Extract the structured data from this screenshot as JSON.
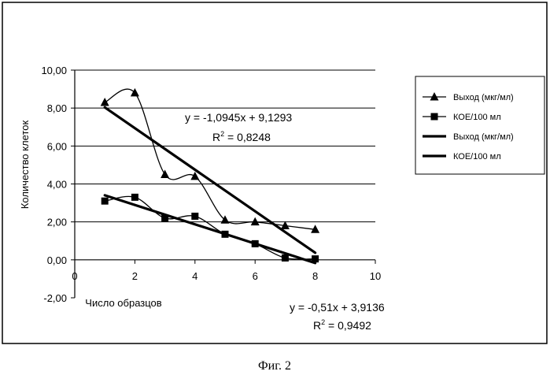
{
  "chart_data": {
    "type": "line",
    "xlabel": "Число образцов",
    "ylabel": "Количество клеток",
    "xlim": [
      0,
      10
    ],
    "ylim": [
      -2,
      10
    ],
    "x_ticks": [
      0,
      2,
      4,
      6,
      8,
      10
    ],
    "x_tick_labels": [
      "0",
      "2",
      "4",
      "6",
      "8",
      "10"
    ],
    "y_ticks": [
      -2,
      0,
      2,
      4,
      6,
      8,
      10
    ],
    "y_tick_labels": [
      "-2,00",
      "0,00",
      "2,00",
      "4,00",
      "6,00",
      "8,00",
      "10,00"
    ],
    "grid": "horizontal",
    "legend_position": "right",
    "series": [
      {
        "name": "Выход (мкг/мл)",
        "marker": "triangle",
        "smooth": true,
        "x": [
          1,
          2,
          3,
          4,
          5,
          6,
          7,
          8
        ],
        "values": [
          8.3,
          8.8,
          4.5,
          4.4,
          2.1,
          2.0,
          1.8,
          1.6
        ]
      },
      {
        "name": "КОЕ/100 мл",
        "marker": "square",
        "smooth": true,
        "x": [
          1,
          2,
          3,
          4,
          5,
          6,
          7,
          8
        ],
        "values": [
          3.1,
          3.3,
          2.2,
          2.3,
          1.35,
          0.85,
          0.1,
          0.05
        ]
      },
      {
        "name": "Выход (мкг/мл)",
        "type": "trendline",
        "slope": -1.0945,
        "intercept": 9.1293,
        "x_range": [
          1,
          8
        ]
      },
      {
        "name": "КОЕ/100 мл",
        "type": "trendline",
        "slope": -0.51,
        "intercept": 3.9136,
        "x_range": [
          1,
          8
        ]
      }
    ],
    "annotations": [
      {
        "equation": "y = -1,0945x + 9,1293",
        "r2_prefix": "R",
        "r2_exp": "2",
        "r2_value": " = 0,8248"
      },
      {
        "equation": "y = -0,51x + 3,9136",
        "r2_prefix": "R",
        "r2_exp": "2",
        "r2_value": " = 0,9492"
      }
    ]
  },
  "caption": "Фиг. 2"
}
